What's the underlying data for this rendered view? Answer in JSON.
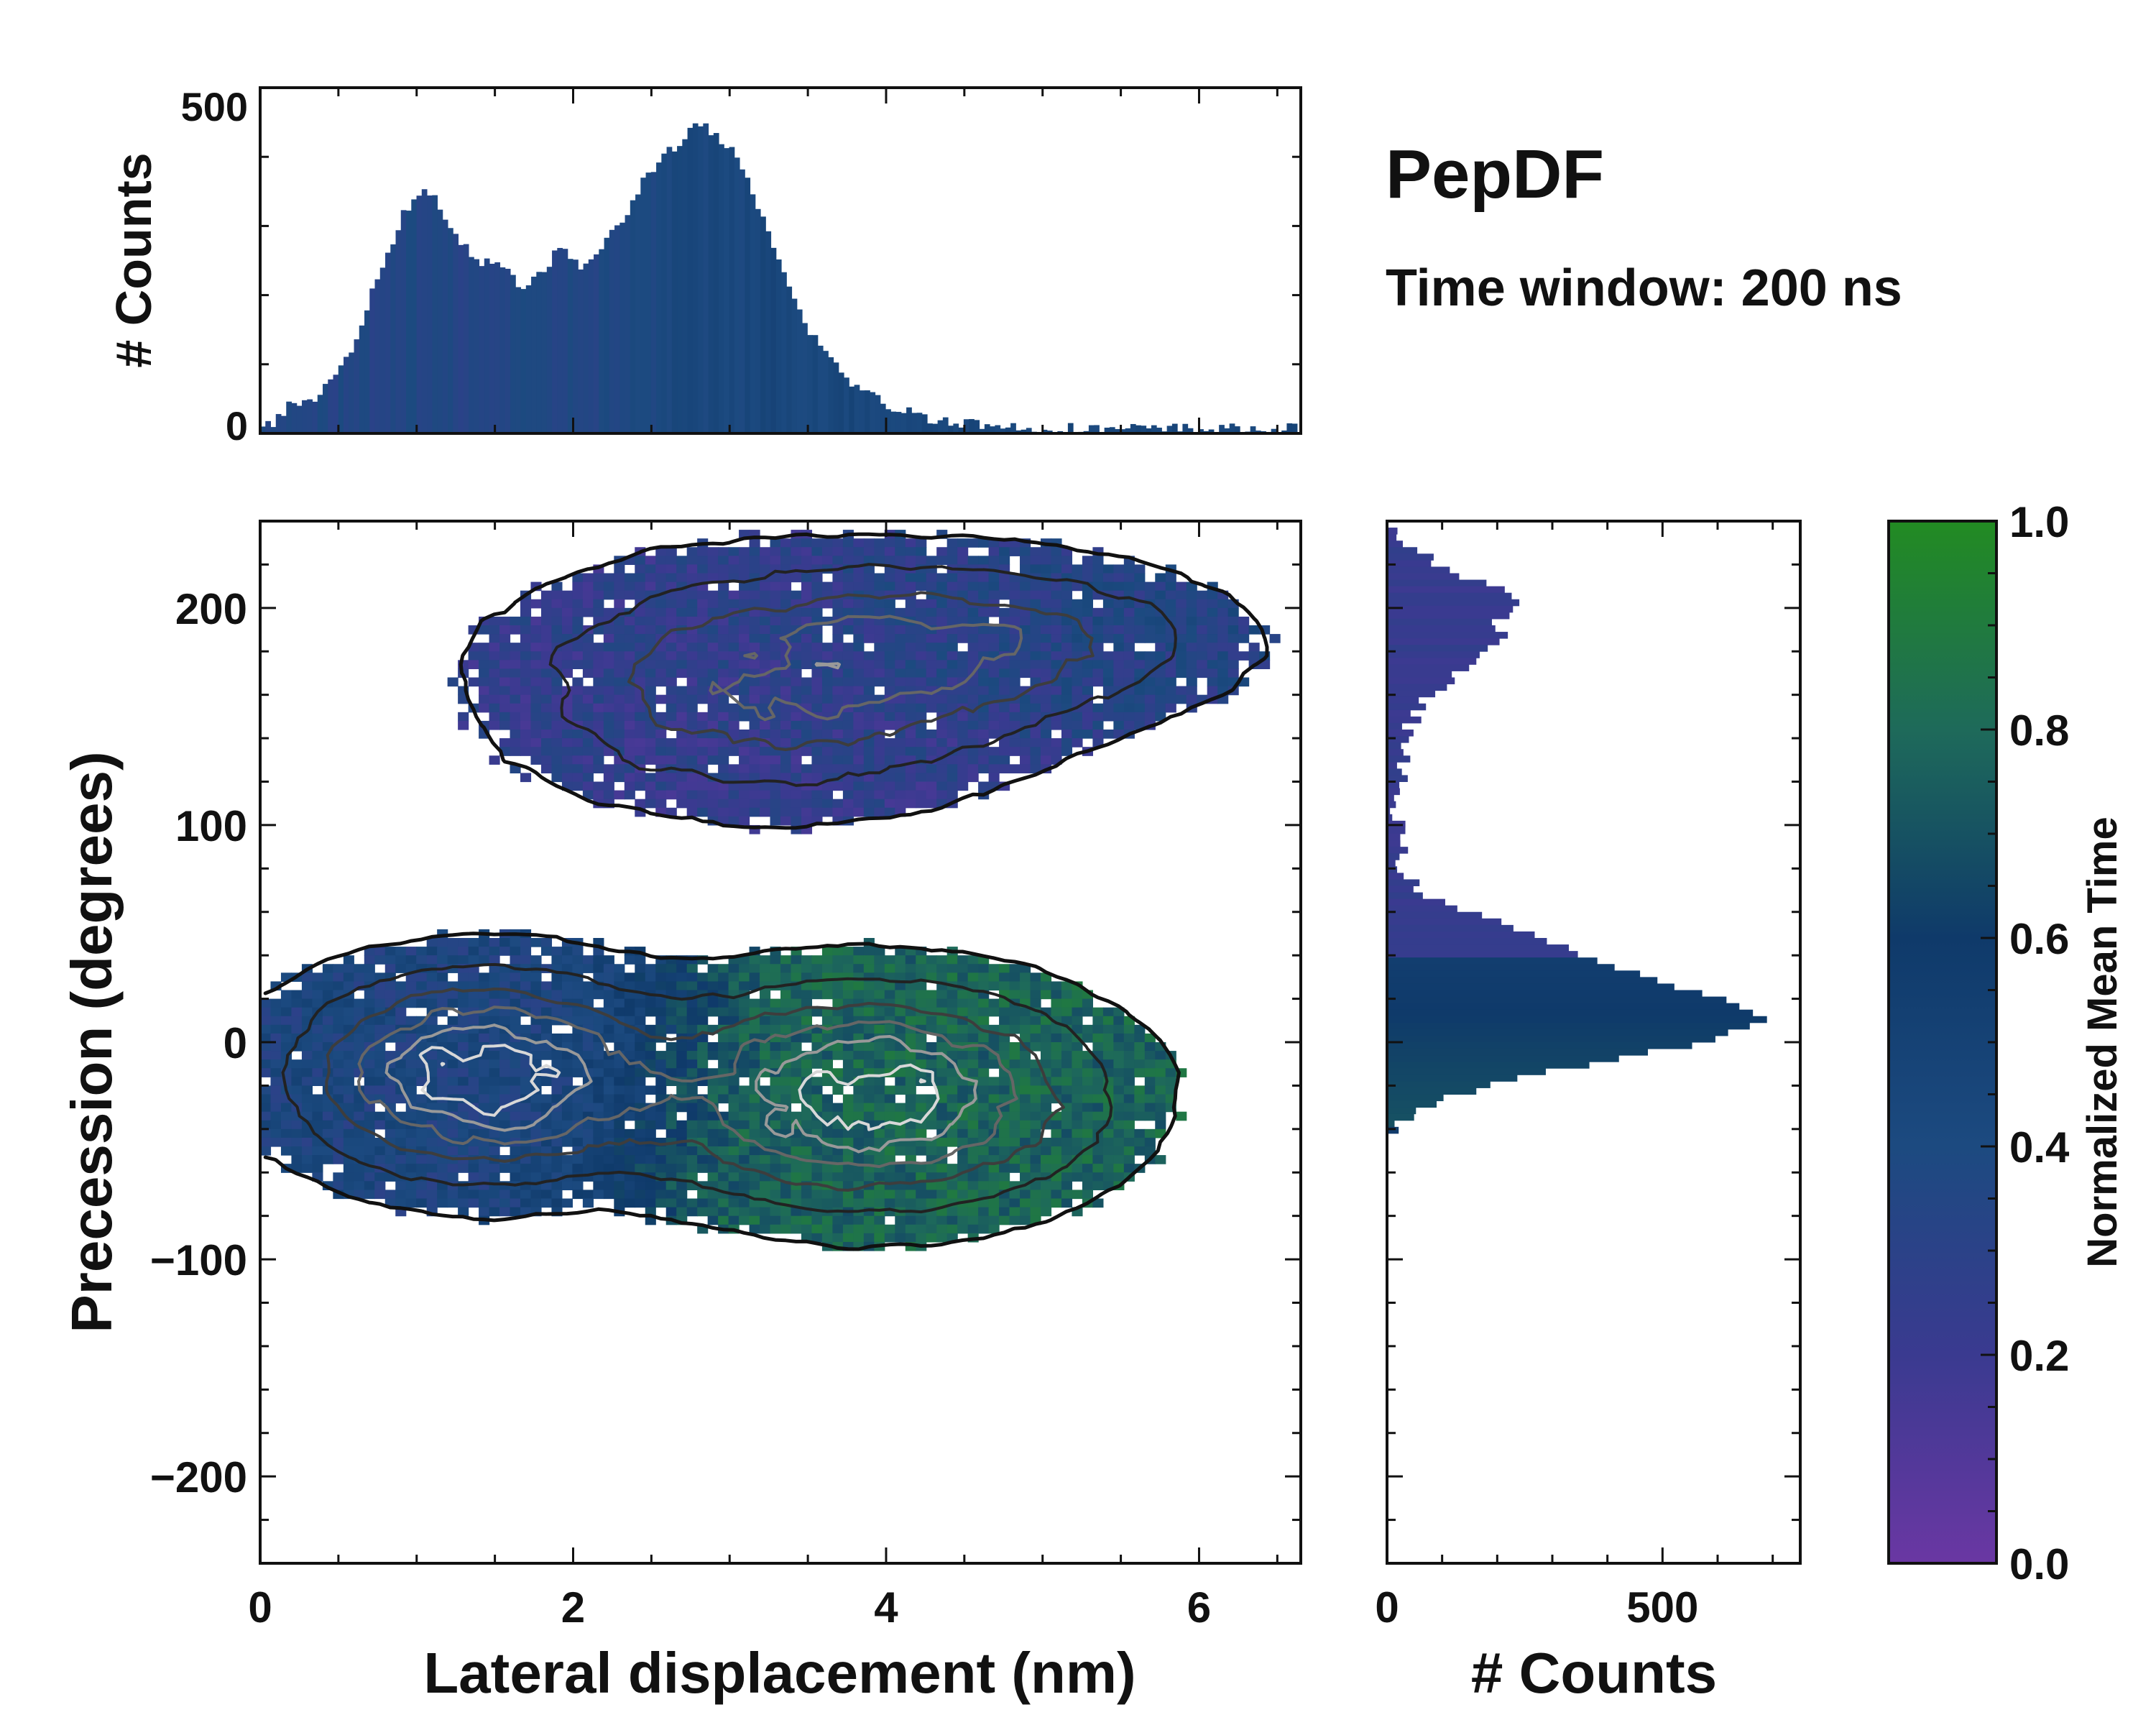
{
  "chart_data": {
    "type": "joint-heatmap",
    "title": "PepDF",
    "subtitle": "Time window: 200 ns",
    "main": {
      "type": "heatmap",
      "xlabel": "Lateral displacement (nm)",
      "ylabel": "Precession (degrees)",
      "xlim": [
        0,
        6.65
      ],
      "ylim": [
        -240,
        240
      ],
      "xticks": [
        0,
        2,
        4,
        6
      ],
      "xtick_labels": [
        "0",
        "2",
        "4",
        "6"
      ],
      "yticks": [
        -200,
        -100,
        0,
        100,
        200
      ],
      "ytick_labels": [
        "−200",
        "−100",
        "0",
        "100",
        "200"
      ],
      "clusters": [
        {
          "name": "cluster-1",
          "cx": 1.4,
          "cy": -15,
          "sx": 0.7,
          "sy": 28,
          "rot": -10,
          "weight": 1.0,
          "tval": 0.4
        },
        {
          "name": "cluster-2",
          "cx": 3.9,
          "cy": -25,
          "sx": 0.85,
          "sy": 30,
          "rot": 0,
          "weight": 1.0,
          "tval": 0.78
        },
        {
          "name": "cluster-3",
          "cx": 3.3,
          "cy": 165,
          "sx": 1.0,
          "sy": 32,
          "rot": 12,
          "weight": 0.55,
          "tval": 0.25
        },
        {
          "name": "cluster-4",
          "cx": 4.7,
          "cy": 185,
          "sx": 0.9,
          "sy": 22,
          "rot": -8,
          "weight": 0.4,
          "tval": 0.35
        }
      ]
    },
    "top_marginal": {
      "type": "bar",
      "ylabel": "# Counts",
      "ylim": [
        0,
        500
      ],
      "yticks": [
        0,
        500
      ],
      "ytick_labels": [
        "0",
        "500"
      ],
      "x_start": 0.0,
      "bin_width": 0.0333,
      "values": [
        5,
        10,
        18,
        25,
        32,
        38,
        35,
        40,
        45,
        48,
        52,
        58,
        65,
        75,
        85,
        95,
        110,
        125,
        145,
        165,
        185,
        205,
        225,
        248,
        262,
        282,
        300,
        315,
        328,
        338,
        345,
        352,
        346,
        340,
        326,
        316,
        300,
        290,
        278,
        268,
        260,
        252,
        248,
        256,
        250,
        240,
        236,
        230,
        226,
        220,
        214,
        214,
        220,
        230,
        238,
        246,
        256,
        264,
        260,
        256,
        250,
        244,
        246,
        250,
        256,
        266,
        276,
        288,
        298,
        310,
        322,
        336,
        350,
        364,
        376,
        386,
        394,
        400,
        410,
        416,
        422,
        430,
        436,
        440,
        442,
        440,
        436,
        430,
        424,
        416,
        406,
        394,
        378,
        362,
        344,
        326,
        306,
        286,
        266,
        248,
        230,
        212,
        196,
        180,
        164,
        150,
        138,
        126,
        116,
        106,
        98,
        90,
        82,
        75,
        68,
        62,
        57,
        52,
        48,
        44,
        41,
        38,
        35,
        33,
        31,
        29,
        27,
        25,
        23,
        22,
        21,
        20,
        19,
        18,
        17,
        16,
        15,
        14,
        13,
        12,
        11,
        11,
        10,
        10,
        9,
        9,
        9,
        8,
        8,
        8,
        8,
        8,
        7,
        7,
        7,
        7,
        7,
        7,
        7,
        6,
        6,
        6,
        6,
        6,
        6,
        6,
        6,
        6,
        6,
        6,
        6,
        6,
        6,
        6,
        6,
        6,
        6,
        6,
        6,
        6,
        6,
        6,
        6,
        6,
        6,
        6,
        6,
        6,
        6,
        6,
        6,
        6,
        6,
        6,
        6,
        6,
        6,
        6,
        6,
        6
      ]
    },
    "right_marginal": {
      "type": "barh",
      "xlabel": "# Counts",
      "xlim": [
        0,
        750
      ],
      "xticks": [
        0,
        500
      ],
      "xtick_labels": [
        "0",
        "500"
      ],
      "y_top": 240,
      "bin_width": 3,
      "values": [
        5,
        12,
        20,
        30,
        45,
        70,
        95,
        120,
        145,
        175,
        205,
        230,
        248,
        240,
        220,
        200,
        195,
        210,
        215,
        190,
        170,
        150,
        135,
        120,
        110,
        95,
        80,
        70,
        60,
        55,
        48,
        42,
        38,
        35,
        32,
        30,
        28,
        26,
        25,
        24,
        23,
        22,
        22,
        21,
        20,
        20,
        20,
        20,
        21,
        22,
        24,
        26,
        28,
        32,
        38,
        45,
        55,
        70,
        95,
        125,
        160,
        200,
        240,
        270,
        300,
        330,
        360,
        390,
        420,
        455,
        490,
        530,
        570,
        610,
        640,
        665,
        675,
        660,
        630,
        590,
        540,
        480,
        420,
        360,
        300,
        245,
        195,
        150,
        112,
        80,
        55,
        35,
        20,
        10,
        5,
        0,
        0,
        0,
        0,
        0,
        0,
        0,
        0,
        0,
        0,
        0,
        0,
        0,
        0,
        0,
        0,
        0,
        0,
        0,
        0,
        0,
        0,
        0,
        0,
        0,
        0,
        0,
        0,
        0,
        0,
        0,
        0,
        0,
        0,
        0,
        0,
        0,
        0,
        0,
        0,
        0,
        0,
        0,
        0,
        0,
        0,
        0,
        0,
        0,
        0,
        0,
        0,
        0,
        0,
        0,
        0,
        0,
        0,
        0,
        0,
        0,
        0,
        0,
        0,
        0
      ]
    },
    "colorbar": {
      "label": "Normalized Mean Time",
      "ticks": [
        0.0,
        0.2,
        0.4,
        0.6,
        0.8,
        1.0
      ],
      "tick_labels": [
        "0.0",
        "0.2",
        "0.4",
        "0.6",
        "0.8",
        "1.0"
      ],
      "colors": [
        "#6a37a3",
        "#3a3a90",
        "#1c4a80",
        "#0f3a6a",
        "#1e6a5a",
        "#228b22"
      ]
    }
  }
}
